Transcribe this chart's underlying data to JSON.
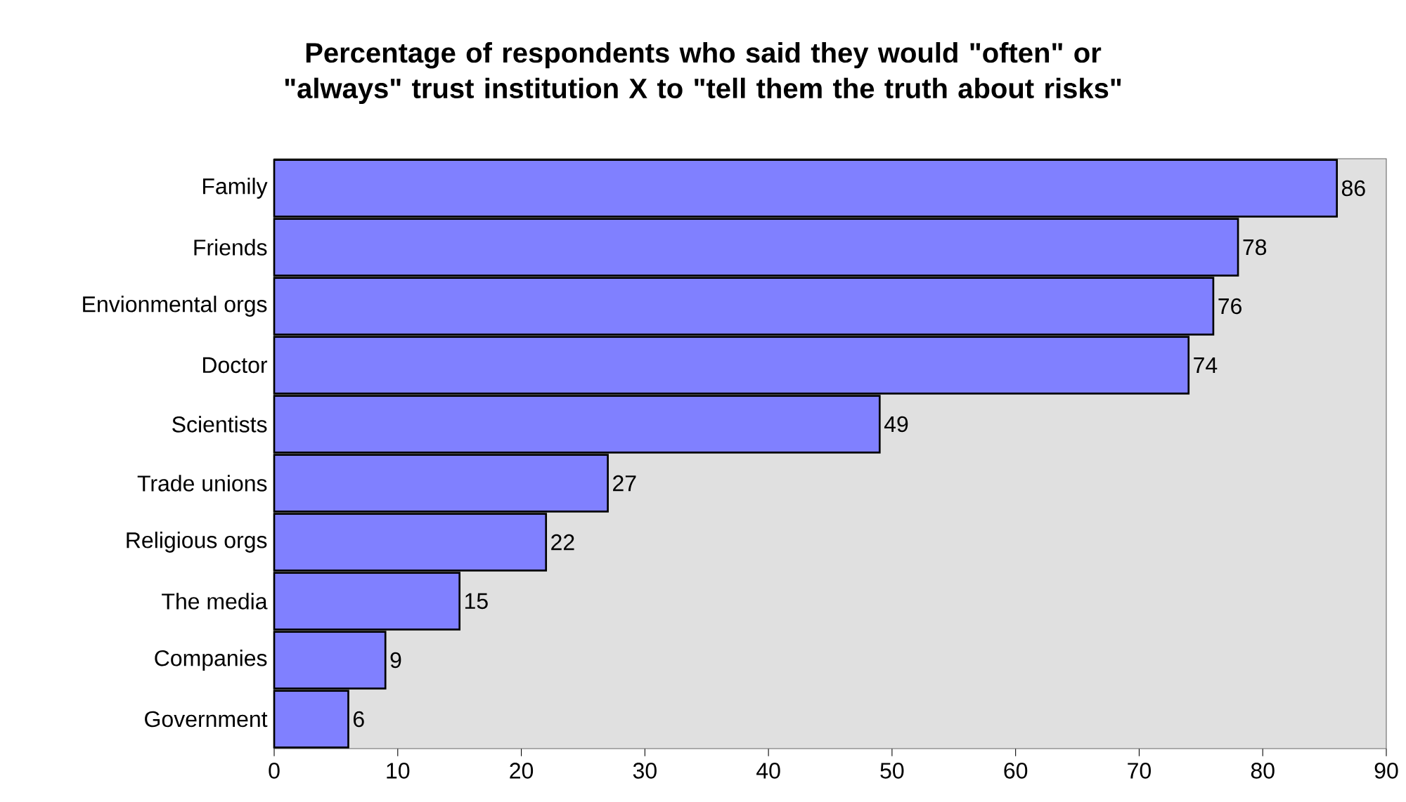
{
  "chart_data": {
    "type": "bar",
    "orientation": "horizontal",
    "title": "Percentage of respondents who said they would \"often\" or \"always\" trust institution X to \"tell them the truth about risks\"",
    "categories": [
      "Family",
      "Friends",
      "Envionmental orgs",
      "Doctor",
      "Scientists",
      "Trade unions",
      "Religious orgs",
      "The media",
      "Companies",
      "Government"
    ],
    "values": [
      86,
      78,
      76,
      74,
      49,
      27,
      22,
      15,
      9,
      6
    ],
    "color": "#8080ff",
    "data_labels": true,
    "legend": false,
    "grid": false,
    "xlim": [
      0,
      90
    ],
    "xticks": [
      0,
      10,
      20,
      30,
      40,
      50,
      60,
      70,
      80,
      90
    ]
  }
}
